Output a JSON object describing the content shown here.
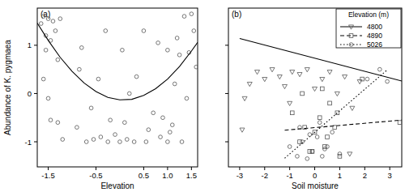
{
  "chart_data": [
    {
      "type": "scatter",
      "title": "(a)",
      "x_label": "Elevation",
      "y_label": "Abundance of K. pygmaea",
      "xlim": [
        -1.73,
        1.63
      ],
      "ylim": [
        -1.52,
        1.77
      ],
      "xticks": [
        -1.5,
        -0.5,
        0.5,
        {
          "value": 1,
          "label": "1.0"
        },
        1.5
      ],
      "yticks": [
        -1,
        0,
        1
      ],
      "series": [
        {
          "type": "scatter",
          "marker": "circle",
          "color": "#555555",
          "x": [
            -1.65,
            -1.6,
            -1.55,
            -1.5,
            -1.45,
            -1.4,
            -1.35,
            -1.3,
            -1.25,
            -1.6,
            -1.5,
            -1.45,
            -1.3,
            -1.55,
            -1.2,
            -0.9,
            -0.85,
            -0.8,
            -0.7,
            -0.6,
            -0.55,
            -0.45,
            -0.4,
            -0.3,
            -0.25,
            -0.2,
            -0.1,
            0.0,
            0.05,
            0.1,
            0.15,
            0.2,
            0.3,
            0.35,
            0.5,
            0.6,
            0.7,
            0.8,
            0.85,
            0.9,
            1.0,
            1.05,
            1.1,
            1.15,
            1.2,
            1.25,
            1.3,
            1.35,
            1.4,
            1.45,
            1.5,
            1.55,
            1.6,
            1.0,
            0.55
          ],
          "values": [
            1.45,
            1.6,
            1.2,
            1.55,
            1.1,
            1.5,
            1.3,
            0.7,
            1.55,
            0.3,
            -0.1,
            -0.55,
            -0.6,
            0.9,
            -0.95,
            -0.7,
            0.5,
            0.95,
            -1.0,
            -0.3,
            -0.95,
            0.3,
            -0.9,
            1.3,
            -1.0,
            -0.55,
            -0.85,
            -1.0,
            0.9,
            -0.6,
            -0.95,
            0.0,
            -1.0,
            0.35,
            1.3,
            -0.75,
            -0.4,
            1.05,
            -0.9,
            -0.5,
            0.9,
            -0.8,
            -0.65,
            0.2,
            1.15,
            0.8,
            -1.0,
            1.6,
            -0.1,
            0.85,
            1.65,
            1.3,
            0.55,
            -1.0,
            -1.0
          ]
        },
        {
          "type": "line",
          "line_style": "solid",
          "color": "#000000",
          "x": [
            -1.73,
            -1.5,
            -1.25,
            -1.0,
            -0.75,
            -0.5,
            -0.25,
            0.0,
            0.25,
            0.5,
            0.75,
            1.0,
            1.25,
            1.5,
            1.63
          ],
          "values": [
            1.46,
            1.1,
            0.75,
            0.46,
            0.22,
            0.04,
            -0.08,
            -0.13,
            -0.12,
            -0.04,
            0.1,
            0.3,
            0.56,
            0.88,
            1.06
          ]
        }
      ]
    },
    {
      "type": "scatter",
      "title": "(b)",
      "x_label": "Soil moisture",
      "xlim": [
        -3.45,
        3.48
      ],
      "ylim": [
        -1.52,
        1.77
      ],
      "xticks": [
        -3,
        -2,
        -1,
        0,
        1,
        2,
        3
      ],
      "yticks": [
        -1,
        0,
        1
      ],
      "tick_labels": "x",
      "legend": "top-right",
      "legend_title": "Elevation (m)",
      "series": [
        {
          "name": "4800",
          "marker": "triangle-down",
          "line_style": "solid",
          "color": "#555555",
          "x": [
            -2.9,
            -2.6,
            -2.3,
            -2.0,
            -1.7,
            -1.4,
            -1.2,
            -0.9,
            -0.6,
            -0.3,
            0.0,
            0.3,
            0.6,
            0.9,
            1.2,
            1.5,
            1.8,
            -2.8,
            -1.0,
            1.4
          ],
          "values": [
            -0.75,
            0.2,
            0.45,
            0.3,
            0.5,
            0.35,
            0.15,
            0.45,
            0.4,
            0.5,
            0.1,
            0.3,
            0.45,
            0.0,
            0.35,
            -0.3,
            0.25,
            -0.1,
            -0.2,
            -1.25
          ],
          "fit": {
            "x": [
              -3,
              3.48
            ],
            "values": [
              1.14,
              0.26
            ]
          }
        },
        {
          "name": "4890",
          "marker": "square",
          "line_style": "dashed",
          "color": "#555555",
          "x": [
            -0.9,
            -0.6,
            -0.4,
            -0.2,
            0.0,
            0.2,
            0.4,
            0.6,
            0.8,
            1.0,
            -0.5,
            0.3,
            0.9,
            1.9,
            3.4,
            -0.1,
            0.5
          ],
          "values": [
            -0.4,
            -1.0,
            -0.7,
            -1.2,
            -0.8,
            -0.5,
            -1.1,
            -0.2,
            -0.7,
            -1.3,
            0.0,
            0.1,
            -0.4,
            0.3,
            -0.6,
            -1.2,
            -0.9
          ],
          "fit": {
            "x": [
              -1.2,
              3.48
            ],
            "values": [
              -0.76,
              -0.55
            ]
          }
        },
        {
          "name": "5026",
          "marker": "circle",
          "line_style": "dotted",
          "color": "#555555",
          "x": [
            -1.0,
            -0.7,
            -0.5,
            -0.3,
            -0.1,
            0.1,
            0.3,
            0.5,
            0.7,
            1.0,
            0.2,
            -0.6,
            2.1,
            2.6,
            2.9,
            0.4,
            -0.2
          ],
          "values": [
            -1.1,
            -1.3,
            -1.0,
            -1.35,
            -1.2,
            -0.9,
            -1.3,
            -1.1,
            -0.8,
            -1.25,
            -0.6,
            -0.7,
            0.3,
            0.5,
            0.25,
            -1.15,
            -0.85
          ],
          "fit": {
            "x": [
              -1.2,
              2.9
            ],
            "values": [
              -1.34,
              0.49
            ]
          }
        }
      ]
    }
  ]
}
